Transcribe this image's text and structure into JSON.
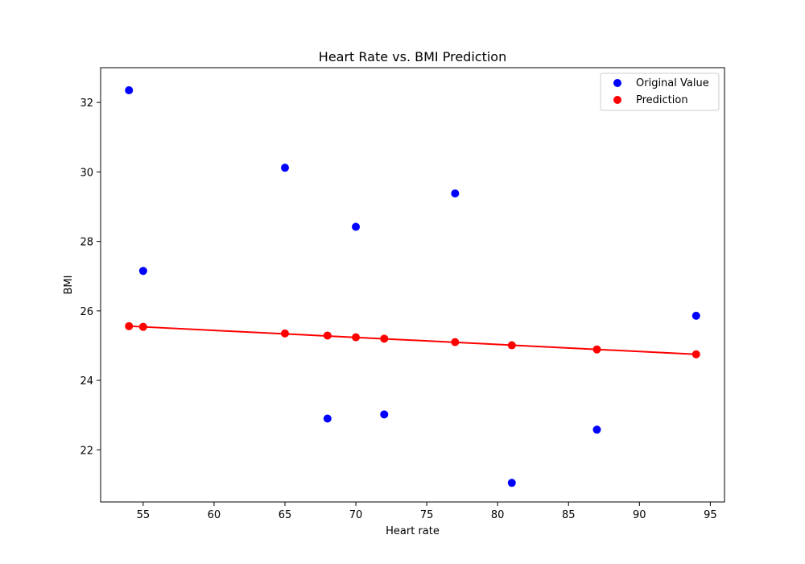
{
  "chart_data": {
    "type": "scatter",
    "title": "Heart Rate vs. BMI Prediction",
    "xlabel": "Heart rate",
    "ylabel": "BMI",
    "xlim": [
      52.0,
      96.0
    ],
    "ylim": [
      20.5,
      33.0
    ],
    "xticks": [
      55,
      60,
      65,
      70,
      75,
      80,
      85,
      90,
      95
    ],
    "yticks": [
      22,
      24,
      26,
      28,
      30,
      32
    ],
    "grid": false,
    "legend_position": "top-right",
    "series": [
      {
        "name": "Original Value",
        "kind": "scatter",
        "color": "#0000ff",
        "x": [
          54,
          55,
          65,
          68,
          70,
          72,
          77,
          81,
          87,
          94
        ],
        "y": [
          32.35,
          27.15,
          30.12,
          22.9,
          28.42,
          23.02,
          29.38,
          21.05,
          22.58,
          25.86
        ]
      },
      {
        "name": "Prediction",
        "kind": "scatter+line",
        "color": "#ff0000",
        "x": [
          54,
          55,
          65,
          68,
          70,
          72,
          77,
          81,
          87,
          94
        ],
        "y": [
          25.56,
          25.54,
          25.35,
          25.29,
          25.24,
          25.2,
          25.1,
          25.01,
          24.89,
          24.75
        ]
      }
    ]
  }
}
